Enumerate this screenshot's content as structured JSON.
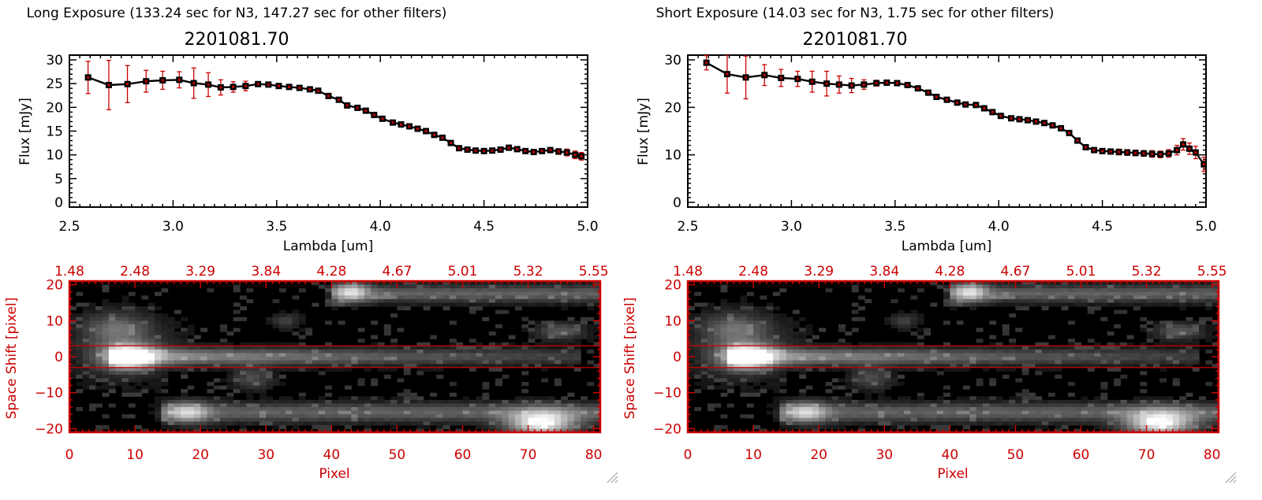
{
  "colors": {
    "data_marker": "#cc0000",
    "error_bar": "#cc0000",
    "line": "#000000",
    "image_accent": "#cc0000",
    "image_bg": "#000000"
  },
  "chart_data": [
    {
      "panel": "left",
      "type": "line",
      "header": "Long Exposure (133.24 sec for N3, 147.27 sec for other filters)",
      "title": "2201081.70",
      "xlabel": "Lambda [um]",
      "ylabel": "Flux [mJy]",
      "xlim": [
        2.5,
        5.0
      ],
      "ylim": [
        -1,
        31
      ],
      "xticks": [
        2.5,
        3.0,
        3.5,
        4.0,
        4.5,
        5.0
      ],
      "xtick_labels": [
        "2.5",
        "3.0",
        "3.5",
        "4.0",
        "4.5",
        "5.0"
      ],
      "yticks": [
        0,
        5,
        10,
        15,
        20,
        25,
        30
      ],
      "ytick_labels": [
        "0",
        "5",
        "10",
        "15",
        "20",
        "25",
        "30"
      ],
      "series": [
        {
          "name": "flux",
          "x": [
            2.59,
            2.69,
            2.78,
            2.87,
            2.95,
            3.03,
            3.1,
            3.17,
            3.23,
            3.29,
            3.35,
            3.41,
            3.46,
            3.51,
            3.56,
            3.61,
            3.66,
            3.7,
            3.75,
            3.8,
            3.84,
            3.89,
            3.93,
            3.97,
            4.01,
            4.06,
            4.1,
            4.14,
            4.18,
            4.22,
            4.26,
            4.3,
            4.34,
            4.38,
            4.42,
            4.46,
            4.5,
            4.54,
            4.58,
            4.62,
            4.66,
            4.7,
            4.74,
            4.78,
            4.82,
            4.86,
            4.9,
            4.94,
            4.97
          ],
          "y": [
            26.3,
            24.7,
            24.9,
            25.5,
            25.7,
            25.8,
            25.1,
            24.8,
            24.2,
            24.3,
            24.5,
            24.9,
            24.8,
            24.5,
            24.3,
            24.1,
            23.8,
            23.5,
            22.4,
            21.6,
            20.4,
            19.9,
            19.3,
            18.4,
            17.6,
            16.8,
            16.4,
            16.0,
            15.5,
            15.0,
            14.2,
            13.6,
            12.5,
            11.4,
            11.1,
            10.9,
            10.8,
            10.9,
            11.1,
            11.5,
            11.2,
            10.8,
            10.6,
            10.8,
            11.0,
            10.7,
            10.5,
            10.0,
            9.7
          ],
          "yerr": [
            3.4,
            5.2,
            3.9,
            2.3,
            1.9,
            1.7,
            3.2,
            2.5,
            1.6,
            1.1,
            1.0,
            0.5,
            0.4,
            0.3,
            0.3,
            0.3,
            0.3,
            0.3,
            0.3,
            0.3,
            0.3,
            0.3,
            0.3,
            0.3,
            0.3,
            0.3,
            0.3,
            0.3,
            0.3,
            0.3,
            0.3,
            0.3,
            0.3,
            0.3,
            0.3,
            0.3,
            0.3,
            0.3,
            0.3,
            0.4,
            0.4,
            0.4,
            0.4,
            0.5,
            0.5,
            0.6,
            0.7,
            0.8,
            0.8
          ]
        }
      ],
      "image": {
        "xlabel": "Pixel",
        "ylabel": "Space Shift [pixel]",
        "xlim": [
          0,
          81
        ],
        "ylim": [
          -21,
          21
        ],
        "xticks": [
          0,
          10,
          20,
          30,
          40,
          50,
          60,
          70,
          80
        ],
        "xtick_labels": [
          "0",
          "10",
          "20",
          "30",
          "40",
          "50",
          "60",
          "70",
          "80"
        ],
        "yticks": [
          -20,
          -10,
          0,
          10,
          20
        ],
        "ytick_labels": [
          "−20",
          "−10",
          "0",
          "10",
          "20"
        ],
        "top_axis_labels": [
          "1.48",
          "2.48",
          "3.29",
          "3.84",
          "4.28",
          "4.67",
          "5.01",
          "5.32",
          "5.55"
        ],
        "aperture": [
          -3,
          3
        ]
      }
    },
    {
      "panel": "right",
      "type": "line",
      "header": "Short Exposure (14.03 sec for N3, 1.75 sec for other filters)",
      "title": "2201081.70",
      "xlabel": "Lambda [um]",
      "ylabel": "Flux [mJy]",
      "xlim": [
        2.5,
        5.0
      ],
      "ylim": [
        -1,
        31
      ],
      "xticks": [
        2.5,
        3.0,
        3.5,
        4.0,
        4.5,
        5.0
      ],
      "xtick_labels": [
        "2.5",
        "3.0",
        "3.5",
        "4.0",
        "4.5",
        "5.0"
      ],
      "yticks": [
        0,
        10,
        20,
        30
      ],
      "ytick_labels": [
        "0",
        "10",
        "20",
        "30"
      ],
      "series": [
        {
          "name": "flux",
          "x": [
            2.59,
            2.69,
            2.78,
            2.87,
            2.95,
            3.03,
            3.1,
            3.17,
            3.23,
            3.29,
            3.35,
            3.41,
            3.46,
            3.51,
            3.56,
            3.61,
            3.66,
            3.7,
            3.75,
            3.8,
            3.84,
            3.89,
            3.93,
            3.97,
            4.01,
            4.06,
            4.1,
            4.14,
            4.18,
            4.22,
            4.26,
            4.3,
            4.34,
            4.38,
            4.42,
            4.46,
            4.5,
            4.54,
            4.58,
            4.62,
            4.66,
            4.7,
            4.74,
            4.78,
            4.82,
            4.86,
            4.89,
            4.92,
            4.95,
            4.99
          ],
          "y": [
            29.4,
            27.0,
            26.3,
            26.8,
            26.2,
            26.0,
            25.4,
            25.0,
            24.8,
            24.6,
            24.8,
            25.1,
            25.2,
            25.1,
            24.7,
            24.0,
            23.1,
            22.2,
            21.6,
            21.0,
            20.6,
            20.5,
            19.8,
            19.0,
            18.2,
            17.7,
            17.5,
            17.3,
            17.0,
            16.7,
            16.2,
            15.6,
            14.6,
            13.0,
            11.6,
            11.0,
            10.8,
            10.7,
            10.6,
            10.5,
            10.4,
            10.3,
            10.2,
            10.1,
            10.3,
            11.0,
            12.2,
            11.3,
            10.5,
            8.0
          ],
          "yerr": [
            1.5,
            4.0,
            4.5,
            2.2,
            1.8,
            1.6,
            2.2,
            2.6,
            1.8,
            1.5,
            1.0,
            0.6,
            0.5,
            0.4,
            0.4,
            0.4,
            0.4,
            0.4,
            0.4,
            0.4,
            0.4,
            0.4,
            0.4,
            0.4,
            0.4,
            0.4,
            0.4,
            0.4,
            0.4,
            0.4,
            0.4,
            0.4,
            0.4,
            0.5,
            0.5,
            0.5,
            0.5,
            0.5,
            0.6,
            0.6,
            0.6,
            0.6,
            0.7,
            0.7,
            0.8,
            1.0,
            1.2,
            1.2,
            1.3,
            1.5
          ]
        }
      ],
      "image": {
        "xlabel": "Pixel",
        "ylabel": "Space Shift [pixel]",
        "xlim": [
          0,
          81
        ],
        "ylim": [
          -21,
          21
        ],
        "xticks": [
          0,
          10,
          20,
          30,
          40,
          50,
          60,
          70,
          80
        ],
        "xtick_labels": [
          "0",
          "10",
          "20",
          "30",
          "40",
          "50",
          "60",
          "70",
          "80"
        ],
        "yticks": [
          -20,
          -10,
          0,
          10,
          20
        ],
        "ytick_labels": [
          "−20",
          "−10",
          "0",
          "10",
          "20"
        ],
        "top_axis_labels": [
          "1.48",
          "2.48",
          "3.29",
          "3.84",
          "4.28",
          "4.67",
          "5.01",
          "5.32",
          "5.55"
        ],
        "aperture": [
          -3,
          3
        ]
      }
    }
  ]
}
